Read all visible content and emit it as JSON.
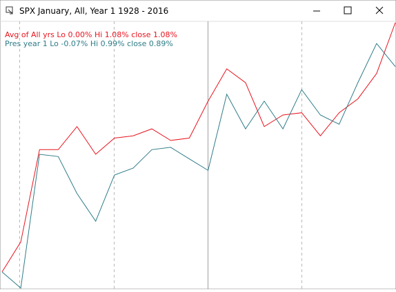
{
  "window": {
    "title": "SPX January,  All,  Year 1  1928 - 2016"
  },
  "chart_data": {
    "type": "line",
    "categories": [
      null,
      null,
      null,
      null,
      null,
      null,
      null,
      null,
      null,
      null,
      null,
      null,
      null,
      null,
      null,
      null,
      null,
      null,
      null,
      null,
      null,
      null
    ],
    "series": [
      {
        "name": "Avg of All yrs  Lo 0.00%  Hi 1.08%  close 1.08%",
        "color": "#e8141e",
        "values": [
          0.0,
          0.13,
          0.53,
          0.53,
          0.63,
          0.51,
          0.58,
          0.59,
          0.62,
          0.57,
          0.58,
          0.74,
          0.88,
          0.82,
          0.63,
          0.68,
          0.69,
          0.59,
          0.69,
          0.75,
          0.86,
          1.08
        ]
      },
      {
        "name": "Pres year 1  Lo -0.07%  Hi 0.99%  close 0.89%",
        "color": "#2e7c88",
        "values": [
          0.0,
          -0.07,
          0.51,
          0.5,
          0.34,
          0.22,
          0.42,
          0.45,
          0.53,
          0.54,
          0.49,
          0.44,
          0.77,
          0.62,
          0.74,
          0.62,
          0.79,
          0.68,
          0.64,
          0.82,
          0.99,
          0.89
        ]
      }
    ],
    "ylim": [
      -0.075,
      1.086
    ]
  }
}
